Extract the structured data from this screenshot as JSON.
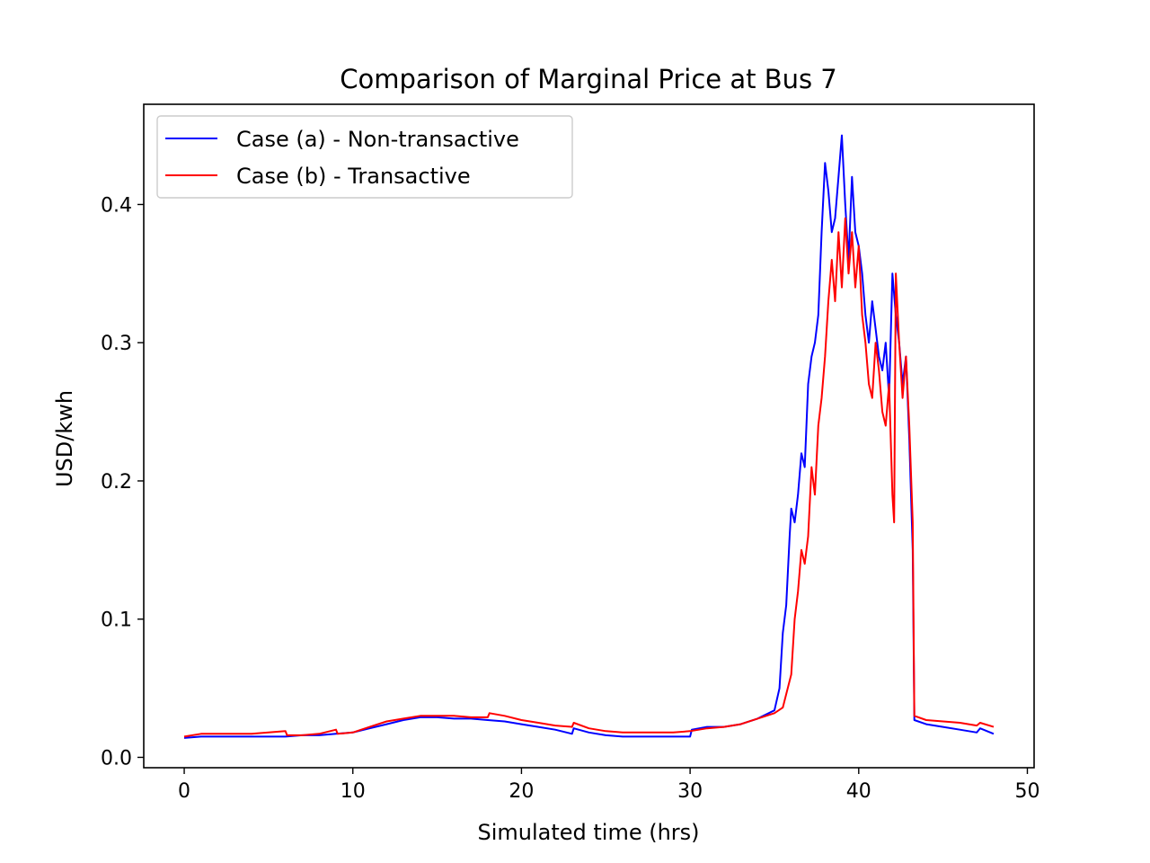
{
  "chart_data": {
    "type": "line",
    "title": "Comparison of Marginal Price at Bus 7",
    "xlabel": "Simulated time (hrs)",
    "ylabel": "USD/kwh",
    "xlim": [
      -2.4,
      50.4
    ],
    "ylim": [
      -0.0075,
      0.4725
    ],
    "xticks": [
      0,
      10,
      20,
      30,
      40,
      50
    ],
    "xtick_labels": [
      "0",
      "10",
      "20",
      "30",
      "40",
      "50"
    ],
    "yticks": [
      0.0,
      0.1,
      0.2,
      0.3,
      0.4
    ],
    "ytick_labels": [
      "0.0",
      "0.1",
      "0.2",
      "0.3",
      "0.4"
    ],
    "grid": false,
    "legend_position": "top-left",
    "series": [
      {
        "name": "Case (a) - Non-transactive",
        "color": "#0000ff",
        "x": [
          0,
          1,
          2,
          3,
          4,
          5,
          6,
          7,
          8,
          9,
          10,
          11,
          12,
          13,
          14,
          15,
          16,
          17,
          18,
          19,
          20,
          21,
          22,
          23,
          23.1,
          24,
          25,
          26,
          27,
          28,
          29,
          30,
          30.1,
          31,
          32,
          33,
          34,
          35,
          35.3,
          35.5,
          35.7,
          35.9,
          36.0,
          36.2,
          36.4,
          36.6,
          36.8,
          37.0,
          37.2,
          37.4,
          37.6,
          37.8,
          38.0,
          38.2,
          38.4,
          38.6,
          38.8,
          39.0,
          39.2,
          39.4,
          39.6,
          39.8,
          40.0,
          40.2,
          40.4,
          40.6,
          40.8,
          41.0,
          41.2,
          41.4,
          41.6,
          41.8,
          42.0,
          42.2,
          42.4,
          42.6,
          42.8,
          43.0,
          43.2,
          43.3,
          44,
          45,
          46,
          47,
          47.2,
          48
        ],
        "y": [
          0.014,
          0.015,
          0.015,
          0.015,
          0.015,
          0.015,
          0.015,
          0.016,
          0.016,
          0.017,
          0.018,
          0.021,
          0.024,
          0.027,
          0.029,
          0.029,
          0.028,
          0.028,
          0.027,
          0.026,
          0.024,
          0.022,
          0.02,
          0.017,
          0.021,
          0.018,
          0.016,
          0.015,
          0.015,
          0.015,
          0.015,
          0.015,
          0.02,
          0.022,
          0.022,
          0.024,
          0.028,
          0.034,
          0.05,
          0.09,
          0.11,
          0.16,
          0.18,
          0.17,
          0.19,
          0.22,
          0.21,
          0.27,
          0.29,
          0.3,
          0.32,
          0.38,
          0.43,
          0.41,
          0.38,
          0.39,
          0.42,
          0.45,
          0.4,
          0.36,
          0.42,
          0.38,
          0.37,
          0.35,
          0.32,
          0.3,
          0.33,
          0.31,
          0.29,
          0.28,
          0.3,
          0.26,
          0.35,
          0.32,
          0.3,
          0.27,
          0.29,
          0.23,
          0.15,
          0.027,
          0.024,
          0.022,
          0.02,
          0.018,
          0.021,
          0.017
        ]
      },
      {
        "name": "Case (b) - Transactive",
        "color": "#ff0000",
        "x": [
          0,
          1,
          2,
          3,
          4,
          5,
          6,
          6.1,
          7,
          8,
          9,
          9.1,
          10,
          11,
          12,
          13,
          14,
          15,
          16,
          17,
          18,
          18.1,
          19,
          20,
          21,
          22,
          23,
          23.1,
          24,
          25,
          26,
          27,
          28,
          29,
          30,
          31,
          32,
          33,
          34,
          35,
          35.5,
          36.0,
          36.2,
          36.4,
          36.6,
          36.8,
          37.0,
          37.2,
          37.4,
          37.6,
          37.8,
          38.0,
          38.2,
          38.4,
          38.6,
          38.8,
          39.0,
          39.2,
          39.4,
          39.6,
          39.8,
          40.0,
          40.2,
          40.4,
          40.6,
          40.8,
          41.0,
          41.2,
          41.4,
          41.6,
          41.8,
          42.0,
          42.1,
          42.2,
          42.4,
          42.6,
          42.8,
          43.0,
          43.2,
          43.3,
          44,
          45,
          46,
          47,
          47.2,
          48
        ],
        "y": [
          0.015,
          0.017,
          0.017,
          0.017,
          0.017,
          0.018,
          0.019,
          0.016,
          0.016,
          0.017,
          0.02,
          0.017,
          0.018,
          0.022,
          0.026,
          0.028,
          0.03,
          0.03,
          0.03,
          0.029,
          0.029,
          0.032,
          0.03,
          0.027,
          0.025,
          0.023,
          0.022,
          0.025,
          0.021,
          0.019,
          0.018,
          0.018,
          0.018,
          0.018,
          0.019,
          0.021,
          0.022,
          0.024,
          0.028,
          0.032,
          0.036,
          0.06,
          0.1,
          0.12,
          0.15,
          0.14,
          0.16,
          0.21,
          0.19,
          0.24,
          0.26,
          0.29,
          0.33,
          0.36,
          0.33,
          0.38,
          0.34,
          0.39,
          0.35,
          0.38,
          0.34,
          0.37,
          0.32,
          0.3,
          0.27,
          0.26,
          0.3,
          0.28,
          0.25,
          0.24,
          0.27,
          0.19,
          0.17,
          0.35,
          0.3,
          0.26,
          0.29,
          0.24,
          0.17,
          0.03,
          0.027,
          0.026,
          0.025,
          0.023,
          0.025,
          0.022
        ]
      }
    ]
  }
}
